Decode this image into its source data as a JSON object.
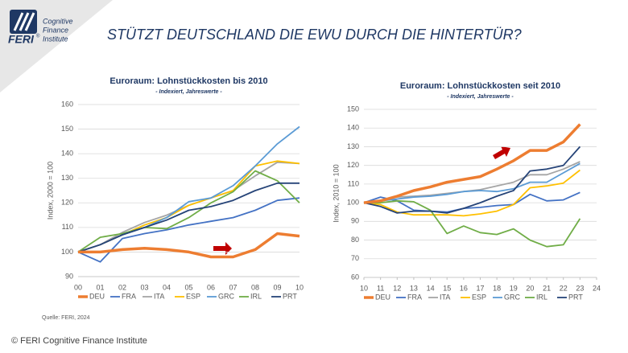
{
  "logo": {
    "name": "FERI",
    "mark": "®",
    "lines": [
      "Cognitive",
      "Finance",
      "Institute"
    ]
  },
  "title": "STÜTZT DEUTSCHLAND DIE EWU DURCH DIE HINTERTÜR?",
  "source": "Quelle: FERI, 2024",
  "footer": "© FERI Cognitive Finance Institute",
  "chart_data": [
    {
      "type": "line",
      "title": "Euroraum:  Lohnstückkosten  bis 2010",
      "subtitle": "- Indexiert, Jahreswerte -",
      "y_label": "Index, 2000 = 100",
      "categories": [
        "00",
        "01",
        "02",
        "03",
        "04",
        "05",
        "06",
        "07",
        "08",
        "09",
        "10"
      ],
      "ylim": [
        90,
        160
      ],
      "yticks": [
        90,
        100,
        110,
        120,
        130,
        140,
        150,
        160
      ],
      "grid": true,
      "legend": "bottom",
      "series": [
        {
          "name": "DEU",
          "color": "#ed7d31",
          "values": [
            100,
            100,
            101,
            101.5,
            101,
            100,
            98,
            98,
            101,
            107.5,
            106.5
          ]
        },
        {
          "name": "FRA",
          "color": "#4472c4",
          "values": [
            100,
            96,
            105.5,
            107.5,
            109,
            111,
            112.5,
            114,
            117,
            121,
            122
          ]
        },
        {
          "name": "ITA",
          "color": "#a5a5a5",
          "values": [
            100,
            103,
            108,
            112,
            115,
            119,
            122,
            125,
            131,
            136.5,
            136
          ]
        },
        {
          "name": "ESP",
          "color": "#ffc000",
          "values": [
            100,
            103,
            107,
            111,
            114,
            119,
            122,
            125,
            135,
            137,
            136
          ]
        },
        {
          "name": "GRC",
          "color": "#5b9bd5",
          "values": [
            100,
            103,
            107,
            110,
            114,
            120.5,
            122,
            127,
            135,
            144,
            151
          ]
        },
        {
          "name": "IRL",
          "color": "#70ad47",
          "values": [
            100,
            106,
            107.5,
            110,
            109.5,
            114,
            120,
            124.5,
            133,
            129,
            120
          ]
        },
        {
          "name": "PRT",
          "color": "#264478",
          "values": [
            100,
            103,
            107,
            110,
            113,
            117,
            118.5,
            121,
            125,
            128,
            128
          ]
        }
      ]
    },
    {
      "type": "line",
      "title": "Euroraum:  Lohnstückkosten  seit 2010",
      "subtitle": "- Indexiert, Jahreswerte -",
      "y_label": "Index, 2010 = 100",
      "x": [
        10,
        11,
        12,
        13,
        14,
        15,
        16,
        17,
        18,
        19,
        20,
        21,
        22,
        23
      ],
      "xlim": [
        10,
        24
      ],
      "xticks": [
        10,
        11,
        12,
        13,
        14,
        15,
        16,
        17,
        18,
        19,
        20,
        21,
        22,
        23,
        24
      ],
      "ylim": [
        60,
        150
      ],
      "yticks": [
        60,
        70,
        80,
        90,
        100,
        110,
        120,
        130,
        140,
        150
      ],
      "grid": true,
      "legend": "bottom",
      "series": [
        {
          "name": "DEU",
          "color": "#ed7d31",
          "values": [
            100,
            101,
            103.5,
            106.5,
            108.5,
            111,
            112.5,
            114,
            118,
            122.5,
            128,
            128,
            132.5,
            142
          ]
        },
        {
          "name": "FRA",
          "color": "#4472c4",
          "values": [
            100,
            103,
            101,
            96,
            95.5,
            95,
            97,
            97.5,
            98.5,
            99,
            104.5,
            101,
            101.5,
            105.5
          ]
        },
        {
          "name": "ITA",
          "color": "#a5a5a5",
          "values": [
            100,
            101,
            103,
            103.5,
            104,
            105,
            106,
            107,
            109,
            111,
            115,
            115,
            118,
            122
          ]
        },
        {
          "name": "ESP",
          "color": "#ffc000",
          "values": [
            100,
            99,
            95,
            93.5,
            93.5,
            93.5,
            93,
            94,
            95.5,
            99,
            108,
            109,
            110.5,
            117.5
          ]
        },
        {
          "name": "GRC",
          "color": "#5b9bd5",
          "values": [
            100,
            101,
            102,
            103,
            103.5,
            104.5,
            106,
            106.5,
            106,
            107.5,
            111,
            111,
            116,
            121
          ]
        },
        {
          "name": "IRL",
          "color": "#70ad47",
          "values": [
            100,
            100,
            101,
            100.5,
            96,
            83.5,
            87.5,
            84,
            83,
            86,
            80,
            76.5,
            77.5,
            91.5
          ]
        },
        {
          "name": "PRT",
          "color": "#264478",
          "values": [
            100,
            98,
            94.5,
            95.5,
            95.5,
            94.5,
            97,
            100,
            103.5,
            106.5,
            117,
            118,
            120,
            130
          ]
        }
      ]
    }
  ]
}
